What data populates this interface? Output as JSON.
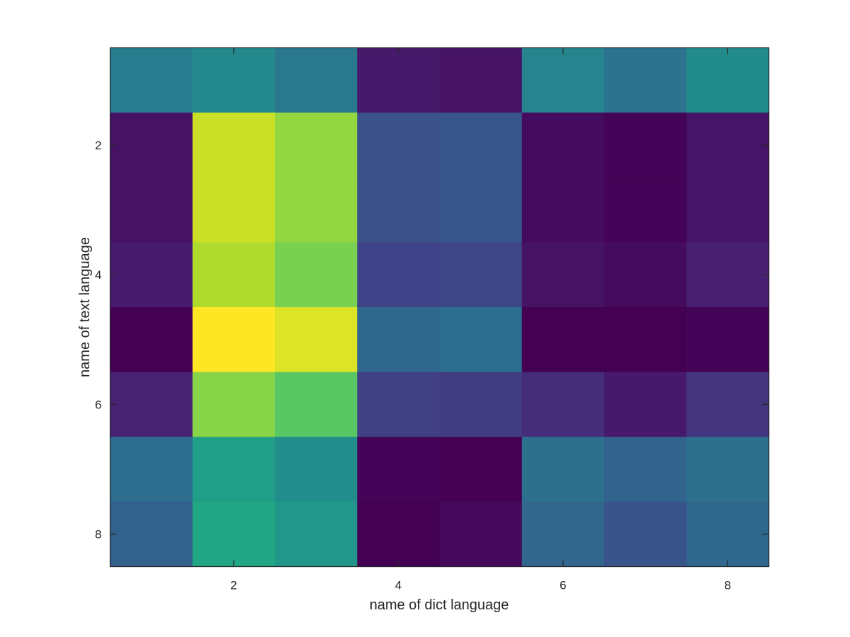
{
  "chart_data": {
    "type": "heatmap",
    "title": "",
    "xlabel": "name of dict language",
    "ylabel": "name of text language",
    "x_ticks": [
      2,
      4,
      6,
      8
    ],
    "y_ticks": [
      2,
      4,
      6,
      8
    ],
    "xlim": [
      0.5,
      8.5
    ],
    "ylim": [
      0.5,
      8.5
    ],
    "y_direction": "reverse",
    "grid": false,
    "colormap": "viridis",
    "clim": [
      0,
      1
    ],
    "rows": [
      1,
      2,
      3,
      4,
      5,
      6,
      7,
      8
    ],
    "columns": [
      1,
      2,
      3,
      4,
      5,
      6,
      7,
      8
    ],
    "values": [
      [
        0.42,
        0.47,
        0.4,
        0.07,
        0.05,
        0.45,
        0.38,
        0.48
      ],
      [
        0.05,
        0.92,
        0.84,
        0.25,
        0.27,
        0.03,
        0.01,
        0.06
      ],
      [
        0.05,
        0.92,
        0.84,
        0.25,
        0.27,
        0.03,
        0.01,
        0.06
      ],
      [
        0.08,
        0.88,
        0.8,
        0.2,
        0.21,
        0.05,
        0.03,
        0.09
      ],
      [
        0.0,
        1.0,
        0.95,
        0.34,
        0.36,
        0.0,
        0.0,
        0.01
      ],
      [
        0.1,
        0.82,
        0.74,
        0.19,
        0.18,
        0.13,
        0.07,
        0.16
      ],
      [
        0.36,
        0.56,
        0.49,
        0.01,
        0.0,
        0.37,
        0.32,
        0.37
      ],
      [
        0.31,
        0.6,
        0.53,
        0.0,
        0.02,
        0.33,
        0.26,
        0.34
      ]
    ],
    "colors": {
      "axis": "#262626",
      "background": "#ffffff"
    }
  }
}
